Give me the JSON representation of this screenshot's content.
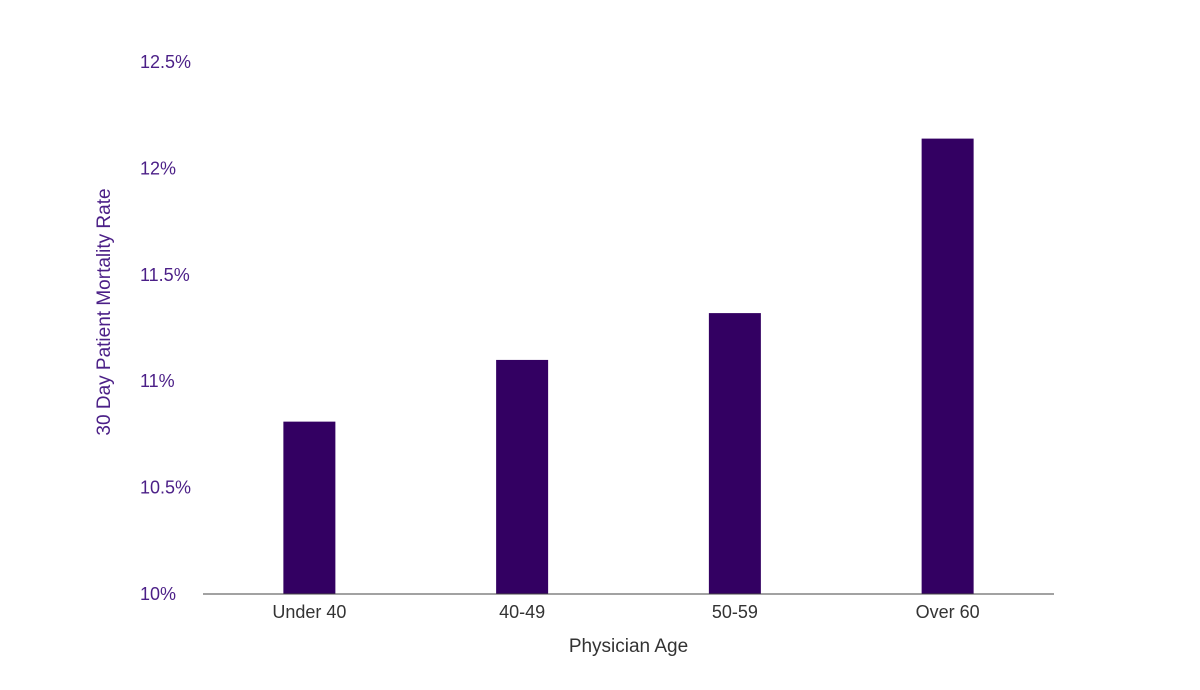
{
  "chart_data": {
    "type": "bar",
    "title": "",
    "xlabel": "Physician Age",
    "ylabel": "30 Day Patient Mortality Rate",
    "categories": [
      "Under 40",
      "40-49",
      "50-59",
      "Over 60"
    ],
    "values": [
      10.81,
      11.1,
      11.32,
      12.14
    ],
    "ylim": [
      10,
      12.5
    ],
    "yticks": [
      10,
      10.5,
      11,
      11.5,
      12,
      12.5
    ],
    "ytick_labels": [
      "10%",
      "10.5%",
      "11%",
      "11.5%",
      "12%",
      "12.5%"
    ],
    "grid": false,
    "legend": "none",
    "colors": {
      "bar": "#330062",
      "axis": "#444444",
      "tick_text": "#4b1f87",
      "label_text": "#333333"
    }
  }
}
